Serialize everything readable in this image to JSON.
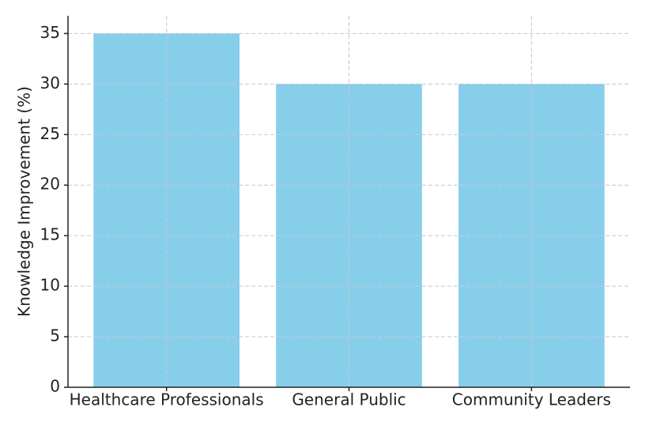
{
  "chart_data": {
    "type": "bar",
    "y_label": "Knowledge Improvement (%)",
    "categories": [
      "Healthcare Professionals",
      "General Public",
      "Community Leaders"
    ],
    "values": [
      35,
      30,
      30
    ],
    "color": "#87ceeb",
    "ylim": [
      0,
      36.75
    ],
    "yticks": [
      0,
      5,
      10,
      15,
      20,
      25,
      30,
      35
    ],
    "grid": true
  }
}
